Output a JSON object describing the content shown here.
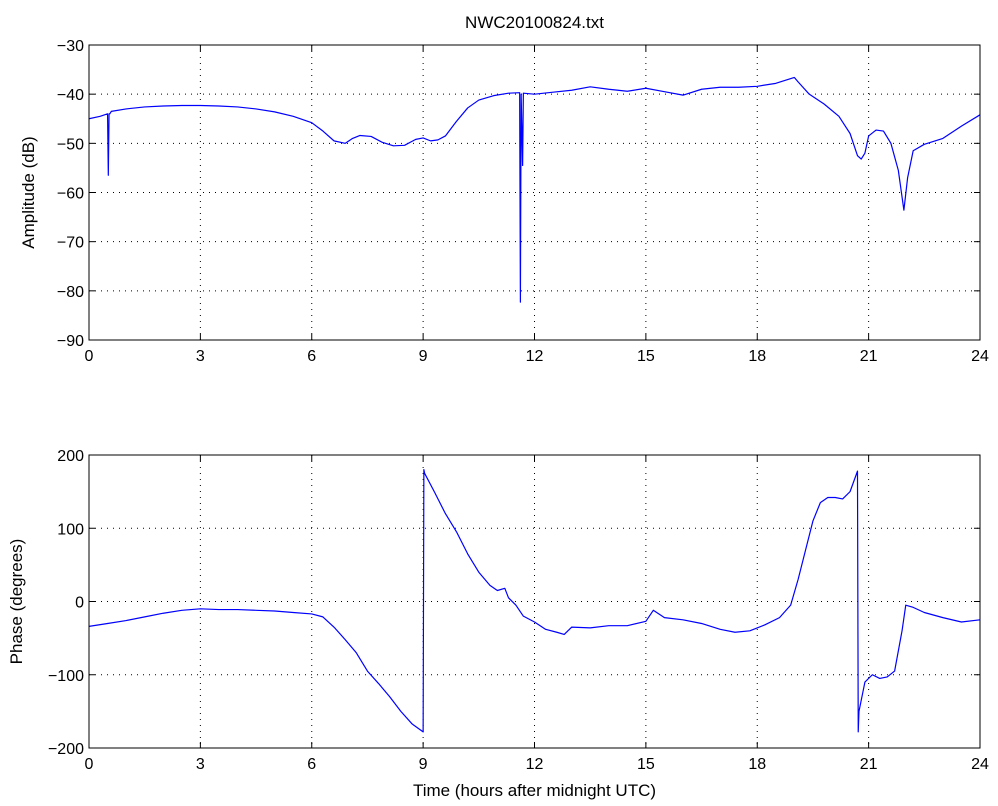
{
  "chart_data": [
    {
      "type": "line",
      "title": "NWC20100824.txt",
      "xlabel": "",
      "ylabel": "Amplitude (dB)",
      "xlim": [
        0,
        24
      ],
      "ylim": [
        -90,
        -30
      ],
      "xticks": [
        0,
        3,
        6,
        9,
        12,
        15,
        18,
        21,
        24
      ],
      "yticks": [
        -90,
        -80,
        -70,
        -60,
        -50,
        -40,
        -30
      ],
      "grid": true,
      "color": "#0000ff",
      "x": [
        0,
        0.3,
        0.5,
        0.52,
        0.54,
        0.56,
        0.6,
        1,
        1.5,
        2,
        2.5,
        3,
        3.5,
        4,
        4.5,
        5,
        5.5,
        6,
        6.3,
        6.6,
        6.9,
        7.1,
        7.3,
        7.6,
        7.9,
        8.2,
        8.5,
        8.8,
        9.0,
        9.2,
        9.4,
        9.6,
        9.9,
        10.2,
        10.5,
        10.9,
        11.3,
        11.6,
        11.62,
        11.64,
        11.68,
        11.7,
        12,
        12.5,
        13,
        13.5,
        14,
        14.5,
        15,
        15.5,
        16,
        16.5,
        17,
        17.5,
        18,
        18.5,
        19,
        19.1,
        19.4,
        19.8,
        20.2,
        20.5,
        20.7,
        20.8,
        20.9,
        21.0,
        21.2,
        21.4,
        21.6,
        21.8,
        21.95,
        22.05,
        22.2,
        22.5,
        23,
        23.5,
        24
      ],
      "y": [
        -45,
        -44.5,
        -44,
        -56.5,
        -44,
        -44,
        -43.5,
        -43,
        -42.6,
        -42.4,
        -42.3,
        -42.3,
        -42.4,
        -42.6,
        -43,
        -43.6,
        -44.5,
        -45.8,
        -47.5,
        -49.5,
        -50,
        -49,
        -48.4,
        -48.6,
        -49.8,
        -50.5,
        -50.4,
        -49.2,
        -48.9,
        -49.5,
        -49.3,
        -48.5,
        -45.5,
        -42.8,
        -41.2,
        -40.3,
        -39.8,
        -39.7,
        -82.3,
        -40,
        -54.5,
        -39.8,
        -40,
        -39.6,
        -39.2,
        -38.5,
        -39,
        -39.4,
        -38.8,
        -39.5,
        -40.2,
        -39,
        -38.6,
        -38.6,
        -38.4,
        -37.8,
        -36.6,
        -37.5,
        -40,
        -42,
        -44.5,
        -48,
        -52.5,
        -53.2,
        -52,
        -48.5,
        -47.3,
        -47.5,
        -50,
        -55.5,
        -63.6,
        -57,
        -51.5,
        -50.2,
        -49,
        -46.5,
        -44.2
      ]
    },
    {
      "type": "line",
      "title": "",
      "xlabel": "Time (hours after midnight UTC)",
      "ylabel": "Phase (degrees)",
      "xlim": [
        0,
        24
      ],
      "ylim": [
        -200,
        200
      ],
      "xticks": [
        0,
        3,
        6,
        9,
        12,
        15,
        18,
        21,
        24
      ],
      "yticks": [
        -200,
        -100,
        0,
        100,
        200
      ],
      "grid": true,
      "color": "#0000ff",
      "x": [
        0,
        0.5,
        1,
        1.5,
        2,
        2.5,
        3,
        3.5,
        4,
        4.5,
        5,
        5.5,
        6,
        6.3,
        6.6,
        6.9,
        7.2,
        7.5,
        7.8,
        8.1,
        8.4,
        8.7,
        9.0,
        9.02,
        9.04,
        9.3,
        9.6,
        9.9,
        10.2,
        10.5,
        10.8,
        11.0,
        11.2,
        11.3,
        11.5,
        11.7,
        12.0,
        12.3,
        12.6,
        12.8,
        13.0,
        13.5,
        14.0,
        14.5,
        15.0,
        15.2,
        15.5,
        16.0,
        16.5,
        17.0,
        17.4,
        17.8,
        18.2,
        18.6,
        18.9,
        19.1,
        19.3,
        19.5,
        19.7,
        19.9,
        20.1,
        20.3,
        20.5,
        20.7,
        20.72,
        20.74,
        20.9,
        21.1,
        21.3,
        21.5,
        21.7,
        21.9,
        22.0,
        22.2,
        22.5,
        23.0,
        23.5,
        24
      ],
      "y": [
        -34,
        -30,
        -26,
        -21,
        -16,
        -12,
        -10,
        -11,
        -11,
        -12,
        -13,
        -15,
        -17,
        -21,
        -35,
        -52,
        -70,
        -95,
        -112,
        -130,
        -150,
        -167,
        -178,
        180,
        175,
        150,
        120,
        95,
        65,
        40,
        22,
        15,
        18,
        5,
        -5,
        -20,
        -28,
        -38,
        -42,
        -45,
        -35,
        -36,
        -33,
        -33,
        -27,
        -12,
        -22,
        -25,
        -30,
        -38,
        -42,
        -40,
        -32,
        -22,
        -5,
        30,
        70,
        110,
        135,
        142,
        142,
        140,
        150,
        178,
        -178,
        -150,
        -110,
        -100,
        -105,
        -103,
        -95,
        -40,
        -5,
        -8,
        -15,
        -22,
        -28,
        -25
      ]
    }
  ]
}
